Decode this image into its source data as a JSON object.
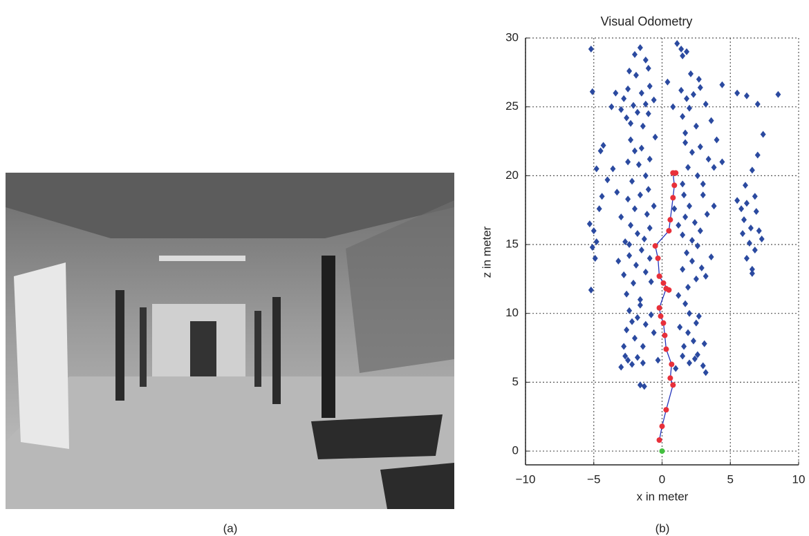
{
  "figure": {
    "captions": [
      "(a)",
      "(b)"
    ]
  },
  "chart_data": {
    "type": "scatter",
    "title": "Visual Odometry",
    "x_label": "x in meter",
    "y_label": "z in meter",
    "xlim": [
      -10,
      10
    ],
    "ylim": [
      -1,
      30
    ],
    "xticks": [
      {
        "value": -10,
        "label": "−10"
      },
      {
        "value": -5,
        "label": "−5"
      },
      0,
      5,
      10
    ],
    "yticks": [
      0,
      5,
      10,
      15,
      20,
      25,
      30
    ],
    "grid": true,
    "series": [
      {
        "color": "#2b4aa0",
        "marker": "diamond",
        "x": [
          -1.6,
          -2.0,
          -1.2,
          -2.4,
          -1.9,
          -1.0,
          -3.4,
          -2.8,
          -2.5,
          -2.1,
          -1.8,
          -1.5,
          -1.2,
          -2.6,
          -3.0,
          -3.7,
          -1.0,
          -2.3,
          -0.6,
          -0.9,
          -1.4,
          -2.3,
          -2.0,
          -2.5,
          -1.7,
          -1.5,
          -0.9,
          -1.2,
          -2.2,
          -1.0,
          -0.5,
          -3.6,
          -4.0,
          -2.5,
          -2.0,
          -1.6,
          -1.1,
          -2.3,
          -1.8,
          -0.9,
          -3.0,
          -2.7,
          -1.3,
          -0.6,
          -3.3,
          -2.4,
          -2.4,
          -1.9,
          -1.5,
          -2.8,
          -2.1,
          -1.2,
          -0.8,
          -2.6,
          -1.6,
          -3.2,
          -0.9,
          -2.4,
          -1.8,
          -1.2,
          -2.6,
          -2.0,
          -1.4,
          -0.6,
          -2.8,
          -1.6,
          -0.8,
          -2.2,
          -2.5,
          -2.2,
          -1.8,
          -1.4,
          -2.7,
          -1.6,
          -1.3,
          -0.3,
          -3.0,
          1.1,
          1.4,
          1.8,
          1.5,
          2.1,
          2.7,
          0.4,
          1.4,
          1.8,
          2.3,
          2.0,
          1.5,
          2.5,
          1.7,
          3.2,
          2.8,
          3.6,
          4.4,
          0.8,
          1.7,
          2.2,
          2.8,
          3.4,
          1.9,
          2.6,
          1.5,
          3.0,
          4.0,
          3.8,
          4.4,
          1.6,
          2.0,
          1.7,
          2.4,
          1.5,
          2.2,
          2.8,
          1.2,
          3.3,
          3.8,
          3.0,
          0.9,
          1.8,
          2.2,
          1.5,
          2.5,
          1.9,
          2.6,
          1.2,
          3.2,
          3.6,
          2.9,
          1.7,
          2.0,
          2.5,
          1.9,
          2.3,
          1.6,
          2.7,
          3.1,
          1.3,
          1.5,
          2.0,
          2.4,
          3.0,
          3.2,
          2.6,
          1.0,
          5.5,
          5.8,
          6.2,
          6.0,
          6.5,
          6.9,
          7.1,
          6.4,
          6.8,
          6.2,
          6.6,
          7.3,
          6.1,
          6.8,
          5.9,
          6.6,
          5.5,
          6.2,
          7.0,
          8.5,
          7.4,
          7.0,
          6.6,
          -5.3,
          -5.0,
          -4.8,
          -5.1,
          -4.9,
          -4.6,
          -4.4,
          -5.2,
          -5.2,
          -5.1,
          -4.5,
          -4.8,
          -4.3
        ],
        "values": [
          29.3,
          28.8,
          28.4,
          27.6,
          27.3,
          27.8,
          26.0,
          25.6,
          26.3,
          25.1,
          24.6,
          26.0,
          25.2,
          24.2,
          24.8,
          25.0,
          24.5,
          23.8,
          25.5,
          26.5,
          23.6,
          22.6,
          21.8,
          21.0,
          20.8,
          22.0,
          21.2,
          20.0,
          19.6,
          19.0,
          22.8,
          20.5,
          19.7,
          18.3,
          17.6,
          18.6,
          17.2,
          16.4,
          15.8,
          16.2,
          17.0,
          15.2,
          15.4,
          17.8,
          18.8,
          15.0,
          14.2,
          13.5,
          14.6,
          12.8,
          12.2,
          13.0,
          12.3,
          11.4,
          11.0,
          13.8,
          14.0,
          10.2,
          9.7,
          9.2,
          8.8,
          8.2,
          7.6,
          8.6,
          7.6,
          10.6,
          9.9,
          9.4,
          6.6,
          6.3,
          6.8,
          6.4,
          6.9,
          4.8,
          4.7,
          6.6,
          6.1,
          29.6,
          29.2,
          29.0,
          28.7,
          27.4,
          27.0,
          26.8,
          26.2,
          25.6,
          25.9,
          24.9,
          24.3,
          23.6,
          23.1,
          25.2,
          26.4,
          24.0,
          26.6,
          25.0,
          22.4,
          21.7,
          22.1,
          21.2,
          20.6,
          20.0,
          19.4,
          19.4,
          22.6,
          20.6,
          21.0,
          18.6,
          17.8,
          17.0,
          16.6,
          15.7,
          15.3,
          16.0,
          16.4,
          17.2,
          17.8,
          18.6,
          17.6,
          14.4,
          13.8,
          13.2,
          12.5,
          11.9,
          14.9,
          11.3,
          12.7,
          14.1,
          13.3,
          10.7,
          10.0,
          9.3,
          8.6,
          8.0,
          7.6,
          9.8,
          7.8,
          9.0,
          6.9,
          6.4,
          6.7,
          6.2,
          5.7,
          7.0,
          6.0,
          18.2,
          17.6,
          18.0,
          16.8,
          16.2,
          17.4,
          16.0,
          15.1,
          14.6,
          14.0,
          13.2,
          15.4,
          19.3,
          18.5,
          15.8,
          12.9,
          26.0,
          25.8,
          25.2,
          25.9,
          23.0,
          21.5,
          20.4,
          16.5,
          16.0,
          15.2,
          14.8,
          14.0,
          17.6,
          18.5,
          11.7,
          29.2,
          26.1,
          21.8,
          20.5,
          22.2
        ]
      },
      {
        "color": "#e8303a",
        "marker": "circle",
        "line_color": "#2233bb",
        "x": [
          -0.2,
          0.0,
          0.3,
          0.8,
          0.6,
          0.7,
          0.3,
          0.2,
          0.1,
          -0.1,
          -0.2,
          0.3,
          0.5,
          0.1,
          -0.2,
          -0.3,
          -0.5,
          0.5,
          0.6,
          0.8,
          0.9,
          0.8,
          1.0
        ],
        "values": [
          0.8,
          1.8,
          3.0,
          4.8,
          5.3,
          6.3,
          7.4,
          8.4,
          9.3,
          9.8,
          10.4,
          11.8,
          11.7,
          12.2,
          12.7,
          14.0,
          14.9,
          16.0,
          16.8,
          18.4,
          19.3,
          20.2,
          20.2
        ]
      },
      {
        "color": "#44c040",
        "marker": "circle",
        "x": [
          0.0
        ],
        "values": [
          0.0
        ]
      }
    ]
  }
}
